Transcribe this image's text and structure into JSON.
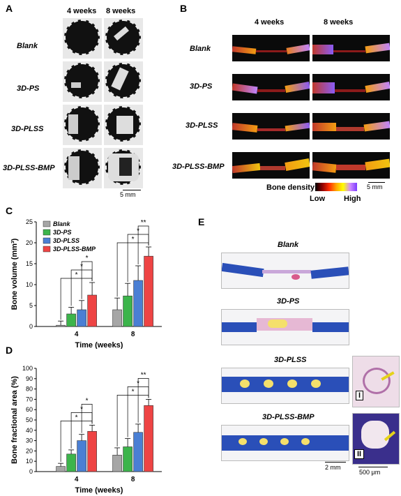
{
  "panels": {
    "A": "A",
    "B": "B",
    "C": "C",
    "D": "D",
    "E": "E"
  },
  "panelA": {
    "col_headers": [
      "4 weeks",
      "8 weeks"
    ],
    "row_labels": [
      "Blank",
      "3D-PS",
      "3D-PLSS",
      "3D-PLSS-BMP"
    ],
    "scale_bar": "5 mm"
  },
  "panelB": {
    "col_headers": [
      "4 weeks",
      "8 weeks"
    ],
    "row_labels": [
      "Blank",
      "3D-PS",
      "3D-PLSS",
      "3D-PLSS-BMP"
    ],
    "colorbar_title": "Bone density",
    "colorbar_low": "Low",
    "colorbar_high": "High",
    "scale_bar": "5 mm"
  },
  "panelE": {
    "titles": [
      "Blank",
      "3D-PS",
      "3D-PLSS",
      "3D-PLSS-BMP"
    ],
    "insets": [
      "I",
      "II"
    ],
    "scale_bar_main": "2 mm",
    "scale_bar_inset": "500 μm"
  },
  "chart_data": [
    {
      "type": "bar",
      "ylabel": "Bone volume (mm³)",
      "xlabel": "Time (weeks)",
      "categories": [
        "4",
        "8"
      ],
      "ylim": [
        0,
        25
      ],
      "yticks": [
        "0",
        "5",
        "10",
        "15",
        "20",
        "25"
      ],
      "series": [
        {
          "name": "Blank",
          "color": "#a6a6a6",
          "values": [
            0.3,
            4.0
          ],
          "err": [
            1.0,
            2.8
          ]
        },
        {
          "name": "3D-PS",
          "color": "#3cb44b",
          "values": [
            3.0,
            7.3
          ],
          "err": [
            1.6,
            3.0
          ]
        },
        {
          "name": "3D-PLSS",
          "color": "#4a7fd4",
          "values": [
            4.0,
            11.0
          ],
          "err": [
            2.2,
            3.5
          ]
        },
        {
          "name": "3D-PLSS-BMP",
          "color": "#ee4444",
          "values": [
            7.5,
            16.8
          ],
          "err": [
            3.0,
            2.2
          ]
        }
      ],
      "annotations": [
        "*",
        "*",
        "*",
        "**"
      ]
    },
    {
      "type": "bar",
      "ylabel": "Bone fractional area (%)",
      "xlabel": "Time (weeks)",
      "categories": [
        "4",
        "8"
      ],
      "ylim": [
        0,
        100
      ],
      "yticks": [
        "0",
        "10",
        "20",
        "30",
        "40",
        "50",
        "60",
        "70",
        "80",
        "90",
        "100"
      ],
      "series": [
        {
          "name": "Blank",
          "color": "#a6a6a6",
          "values": [
            5,
            16
          ],
          "err": [
            3,
            7
          ]
        },
        {
          "name": "3D-PS",
          "color": "#3cb44b",
          "values": [
            17,
            24
          ],
          "err": [
            4,
            8
          ]
        },
        {
          "name": "3D-PLSS",
          "color": "#4a7fd4",
          "values": [
            30,
            38
          ],
          "err": [
            6,
            8
          ]
        },
        {
          "name": "3D-PLSS-BMP",
          "color": "#ee4444",
          "values": [
            39,
            64
          ],
          "err": [
            6,
            6
          ]
        }
      ],
      "annotations": [
        "*",
        "*",
        "*",
        "**"
      ]
    }
  ]
}
